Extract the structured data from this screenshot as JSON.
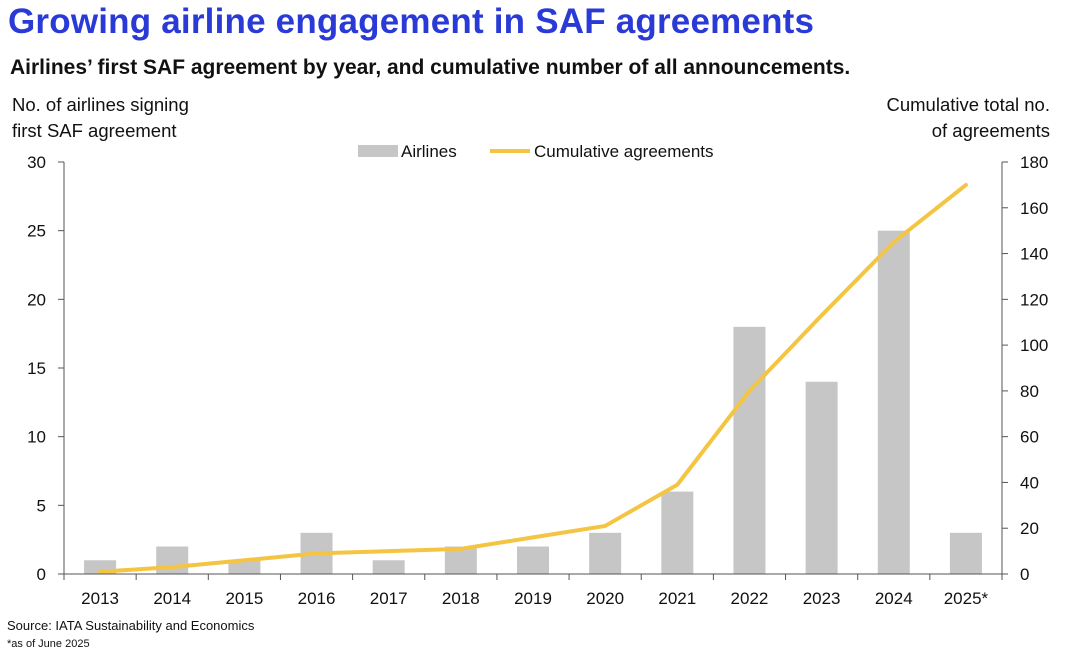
{
  "header": {
    "title": "Growing airline engagement in SAF agreements",
    "subtitle": "Airlines’ first SAF agreement by year, and cumulative number of all announcements."
  },
  "axis_labels": {
    "left_line1": "No. of airlines signing",
    "left_line2": "first SAF agreement",
    "right_line1": "Cumulative total no.",
    "right_line2": "of agreements"
  },
  "footer": {
    "source": "Source: IATA Sustainability and Economics",
    "note": "*as of June 2025"
  },
  "colors": {
    "bar": "#c6c6c6",
    "line": "#f4c542",
    "title": "#2a3ad6"
  },
  "chart_data": {
    "type": "bar",
    "categories": [
      "2013",
      "2014",
      "2015",
      "2016",
      "2017",
      "2018",
      "2019",
      "2020",
      "2021",
      "2022",
      "2023",
      "2024",
      "2025*"
    ],
    "series": [
      {
        "name": "Airlines",
        "type": "bar",
        "axis": "left",
        "values": [
          1,
          2,
          1,
          3,
          1,
          2,
          2,
          3,
          6,
          18,
          14,
          25,
          3
        ]
      },
      {
        "name": "Cumulative agreements",
        "type": "line",
        "axis": "right",
        "values": [
          1,
          3,
          6,
          9,
          10,
          11,
          16,
          21,
          39,
          80,
          113,
          145,
          170
        ]
      }
    ],
    "ylim_left": [
      0,
      30
    ],
    "yticks_left": [
      0,
      5,
      10,
      15,
      20,
      25,
      30
    ],
    "ylim_right": [
      0,
      180
    ],
    "yticks_right": [
      0,
      20,
      40,
      60,
      80,
      100,
      120,
      140,
      160,
      180
    ],
    "legend": "top-center",
    "grid": false
  }
}
